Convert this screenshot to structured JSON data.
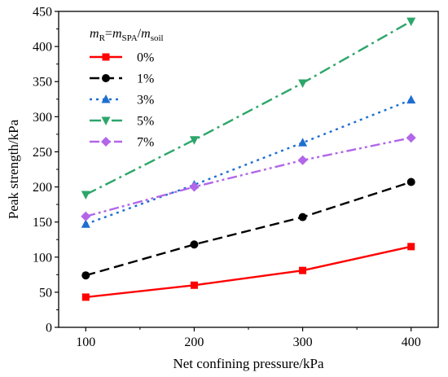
{
  "chart_data": {
    "type": "line",
    "x": [
      100,
      200,
      300,
      400
    ],
    "xlabel": "Net confining pressure/kPa",
    "ylabel": "Peak strength/kPa",
    "xlim": [
      75,
      425
    ],
    "ylim": [
      0,
      450
    ],
    "xticks": [
      "100",
      "200",
      "300",
      "400"
    ],
    "yticks": [
      "0",
      "50",
      "100",
      "150",
      "200",
      "250",
      "300",
      "350",
      "400",
      "450"
    ],
    "grid": false,
    "legend": {
      "position": "top-left",
      "title_parts": {
        "m1": "m",
        "s1": "R",
        "eq": "=",
        "m2": "m",
        "s2": "SPA",
        "slash": "/",
        "m3": "m",
        "s3": "soil"
      }
    },
    "series": [
      {
        "name": "0%",
        "values": [
          43,
          60,
          81,
          115
        ],
        "color": "#ff0000",
        "dash": "solid",
        "marker": "square"
      },
      {
        "name": "1%",
        "values": [
          74,
          118,
          157,
          207
        ],
        "color": "#000000",
        "dash": "dash",
        "marker": "circle"
      },
      {
        "name": "3%",
        "values": [
          147,
          203,
          263,
          324
        ],
        "color": "#1f6fd1",
        "dash": "dot",
        "marker": "triangle-up"
      },
      {
        "name": "5%",
        "values": [
          189,
          267,
          348,
          436
        ],
        "color": "#2ca66a",
        "dash": "dashdot",
        "marker": "triangle-down"
      },
      {
        "name": "7%",
        "values": [
          158,
          200,
          238,
          270
        ],
        "color": "#b266e8",
        "dash": "dashdotdot",
        "marker": "diamond"
      }
    ]
  }
}
